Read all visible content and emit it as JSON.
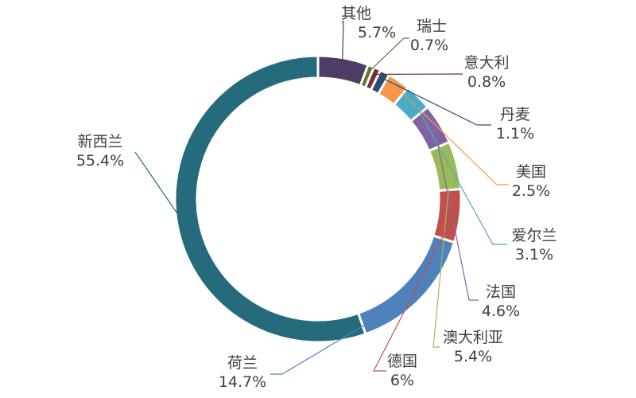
{
  "chart_data": {
    "type": "pie",
    "donut": true,
    "title": "",
    "slices": [
      {
        "label": "其他",
        "value": 5.7,
        "value_label": "5.7%",
        "color": "#4f3c66"
      },
      {
        "label": "瑞士",
        "value": 0.7,
        "value_label": "0.7%",
        "color": "#5e7831"
      },
      {
        "label": "意大利",
        "value": 0.8,
        "value_label": "0.8%",
        "color": "#7a2e2a"
      },
      {
        "label": "丹麦",
        "value": 1.1,
        "value_label": "1.1%",
        "color": "#2b4d75"
      },
      {
        "label": "美国",
        "value": 2.5,
        "value_label": "2.5%",
        "color": "#f79646"
      },
      {
        "label": "爱尔兰",
        "value": 3.1,
        "value_label": "3.1%",
        "color": "#4bacc6"
      },
      {
        "label": "法国",
        "value": 4.6,
        "value_label": "4.6%",
        "color": "#8064a2"
      },
      {
        "label": "澳大利亚",
        "value": 5.4,
        "value_label": "5.4%",
        "color": "#9bbb59"
      },
      {
        "label": "德国",
        "value": 6.0,
        "value_label": "6%",
        "color": "#c0504d"
      },
      {
        "label": "荷兰",
        "value": 14.7,
        "value_label": "14.7%",
        "color": "#4f81bd"
      },
      {
        "label": "新西兰",
        "value": 55.4,
        "value_label": "55.4%",
        "color": "#256b7b"
      }
    ]
  }
}
